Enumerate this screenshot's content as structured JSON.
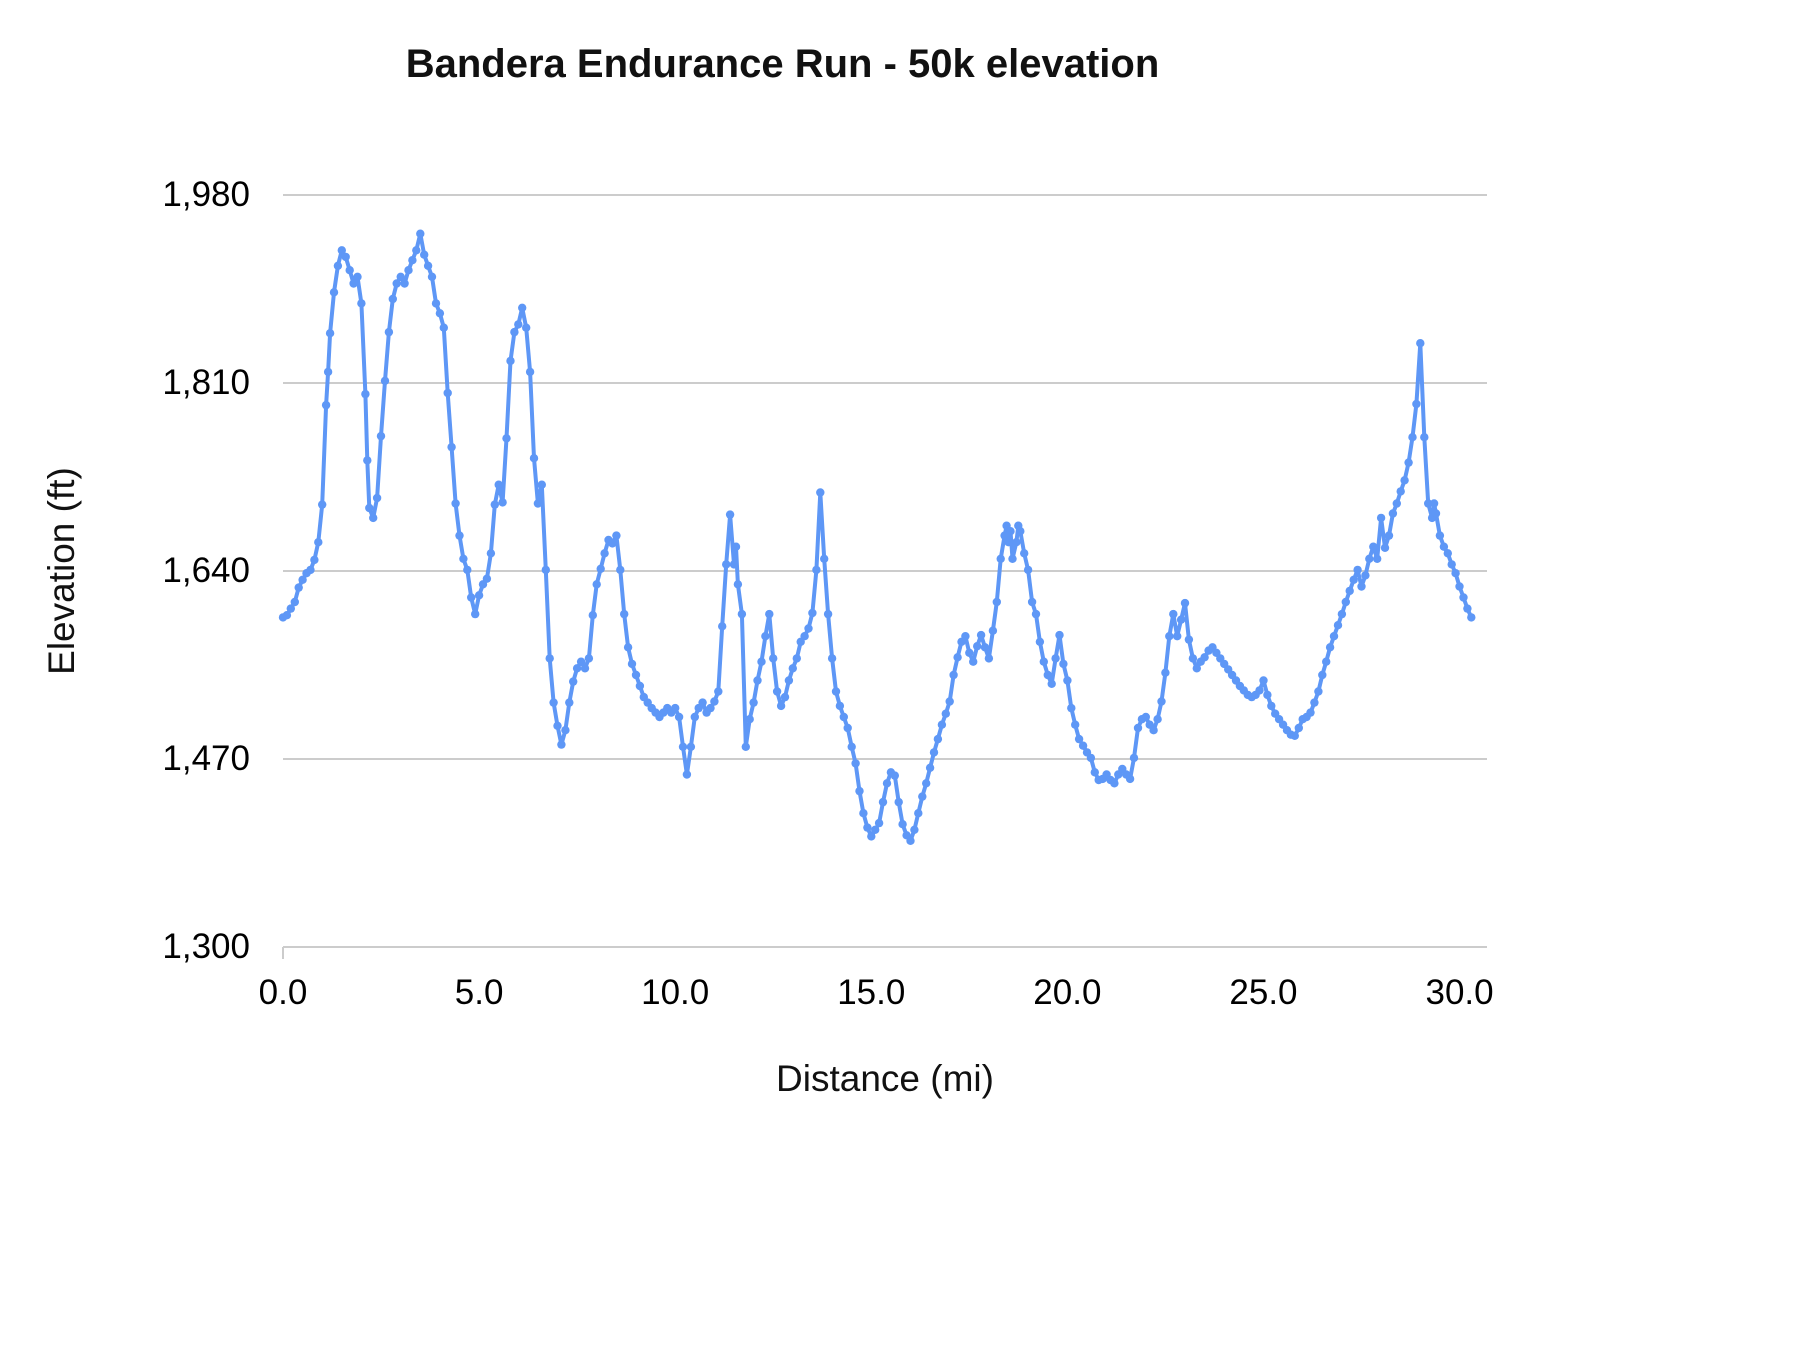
{
  "chart_data": {
    "type": "line",
    "title": "Bandera Endurance Run - 50k elevation",
    "xlabel": "Distance (mi)",
    "ylabel": "Elevation (ft)",
    "xlim": [
      0,
      30.7
    ],
    "ylim": [
      1300,
      1980
    ],
    "grid": "horizontal",
    "legend": "none",
    "line_color": "#5e97f6",
    "grid_color": "#cccccc",
    "marker": "circle",
    "x_ticks": [
      {
        "v": 0,
        "label": "0.0"
      },
      {
        "v": 5,
        "label": "5.0"
      },
      {
        "v": 10,
        "label": "10.0"
      },
      {
        "v": 15,
        "label": "15.0"
      },
      {
        "v": 20,
        "label": "20.0"
      },
      {
        "v": 25,
        "label": "25.0"
      },
      {
        "v": 30,
        "label": "30.0"
      }
    ],
    "y_ticks": [
      {
        "v": 1300,
        "label": "1,300"
      },
      {
        "v": 1470,
        "label": "1,470"
      },
      {
        "v": 1640,
        "label": "1,640"
      },
      {
        "v": 1810,
        "label": "1,810"
      },
      {
        "v": 1980,
        "label": "1,980"
      }
    ],
    "series_name": "Elevation (ft)",
    "points": [
      [
        0.0,
        1598
      ],
      [
        0.1,
        1600
      ],
      [
        0.2,
        1606
      ],
      [
        0.3,
        1612
      ],
      [
        0.4,
        1625
      ],
      [
        0.5,
        1632
      ],
      [
        0.6,
        1638
      ],
      [
        0.7,
        1641
      ],
      [
        0.8,
        1650
      ],
      [
        0.9,
        1666
      ],
      [
        1.0,
        1700
      ],
      [
        1.1,
        1790
      ],
      [
        1.15,
        1820
      ],
      [
        1.2,
        1855
      ],
      [
        1.3,
        1892
      ],
      [
        1.4,
        1916
      ],
      [
        1.5,
        1930
      ],
      [
        1.6,
        1924
      ],
      [
        1.7,
        1912
      ],
      [
        1.8,
        1900
      ],
      [
        1.9,
        1906
      ],
      [
        2.0,
        1882
      ],
      [
        2.1,
        1800
      ],
      [
        2.15,
        1740
      ],
      [
        2.2,
        1697
      ],
      [
        2.3,
        1688
      ],
      [
        2.4,
        1706
      ],
      [
        2.5,
        1762
      ],
      [
        2.6,
        1812
      ],
      [
        2.7,
        1856
      ],
      [
        2.8,
        1886
      ],
      [
        2.9,
        1900
      ],
      [
        3.0,
        1906
      ],
      [
        3.1,
        1900
      ],
      [
        3.2,
        1912
      ],
      [
        3.3,
        1921
      ],
      [
        3.4,
        1930
      ],
      [
        3.5,
        1945
      ],
      [
        3.6,
        1926
      ],
      [
        3.7,
        1916
      ],
      [
        3.8,
        1906
      ],
      [
        3.9,
        1882
      ],
      [
        4.0,
        1873
      ],
      [
        4.1,
        1860
      ],
      [
        4.2,
        1801
      ],
      [
        4.3,
        1752
      ],
      [
        4.4,
        1701
      ],
      [
        4.5,
        1672
      ],
      [
        4.6,
        1651
      ],
      [
        4.7,
        1641
      ],
      [
        4.8,
        1616
      ],
      [
        4.9,
        1601
      ],
      [
        5.0,
        1618
      ],
      [
        5.1,
        1628
      ],
      [
        5.2,
        1633
      ],
      [
        5.3,
        1656
      ],
      [
        5.4,
        1700
      ],
      [
        5.5,
        1718
      ],
      [
        5.6,
        1702
      ],
      [
        5.7,
        1760
      ],
      [
        5.8,
        1830
      ],
      [
        5.9,
        1856
      ],
      [
        6.0,
        1863
      ],
      [
        6.1,
        1878
      ],
      [
        6.2,
        1860
      ],
      [
        6.3,
        1820
      ],
      [
        6.4,
        1742
      ],
      [
        6.5,
        1701
      ],
      [
        6.6,
        1718
      ],
      [
        6.7,
        1641
      ],
      [
        6.8,
        1561
      ],
      [
        6.9,
        1521
      ],
      [
        7.0,
        1500
      ],
      [
        7.1,
        1483
      ],
      [
        7.2,
        1496
      ],
      [
        7.3,
        1521
      ],
      [
        7.4,
        1540
      ],
      [
        7.5,
        1552
      ],
      [
        7.6,
        1558
      ],
      [
        7.7,
        1552
      ],
      [
        7.8,
        1561
      ],
      [
        7.9,
        1600
      ],
      [
        8.0,
        1628
      ],
      [
        8.1,
        1642
      ],
      [
        8.2,
        1656
      ],
      [
        8.3,
        1668
      ],
      [
        8.4,
        1665
      ],
      [
        8.5,
        1672
      ],
      [
        8.6,
        1641
      ],
      [
        8.7,
        1601
      ],
      [
        8.8,
        1571
      ],
      [
        8.9,
        1556
      ],
      [
        9.0,
        1546
      ],
      [
        9.1,
        1536
      ],
      [
        9.2,
        1526
      ],
      [
        9.3,
        1521
      ],
      [
        9.4,
        1516
      ],
      [
        9.5,
        1512
      ],
      [
        9.6,
        1508
      ],
      [
        9.7,
        1512
      ],
      [
        9.8,
        1516
      ],
      [
        9.9,
        1512
      ],
      [
        10.0,
        1516
      ],
      [
        10.1,
        1508
      ],
      [
        10.2,
        1481
      ],
      [
        10.3,
        1456
      ],
      [
        10.4,
        1481
      ],
      [
        10.5,
        1508
      ],
      [
        10.6,
        1516
      ],
      [
        10.7,
        1521
      ],
      [
        10.8,
        1512
      ],
      [
        10.9,
        1516
      ],
      [
        11.0,
        1522
      ],
      [
        11.1,
        1531
      ],
      [
        11.2,
        1590
      ],
      [
        11.3,
        1646
      ],
      [
        11.4,
        1691
      ],
      [
        11.5,
        1646
      ],
      [
        11.55,
        1662
      ],
      [
        11.6,
        1628
      ],
      [
        11.7,
        1601
      ],
      [
        11.8,
        1481
      ],
      [
        11.9,
        1506
      ],
      [
        12.0,
        1521
      ],
      [
        12.1,
        1541
      ],
      [
        12.2,
        1558
      ],
      [
        12.3,
        1581
      ],
      [
        12.4,
        1601
      ],
      [
        12.5,
        1561
      ],
      [
        12.6,
        1531
      ],
      [
        12.7,
        1518
      ],
      [
        12.8,
        1526
      ],
      [
        12.9,
        1541
      ],
      [
        13.0,
        1552
      ],
      [
        13.1,
        1561
      ],
      [
        13.2,
        1576
      ],
      [
        13.3,
        1581
      ],
      [
        13.4,
        1588
      ],
      [
        13.5,
        1602
      ],
      [
        13.6,
        1641
      ],
      [
        13.7,
        1711
      ],
      [
        13.8,
        1651
      ],
      [
        13.9,
        1601
      ],
      [
        14.0,
        1561
      ],
      [
        14.1,
        1531
      ],
      [
        14.2,
        1518
      ],
      [
        14.3,
        1508
      ],
      [
        14.4,
        1498
      ],
      [
        14.5,
        1481
      ],
      [
        14.6,
        1466
      ],
      [
        14.7,
        1441
      ],
      [
        14.8,
        1421
      ],
      [
        14.9,
        1408
      ],
      [
        15.0,
        1400
      ],
      [
        15.1,
        1406
      ],
      [
        15.2,
        1412
      ],
      [
        15.3,
        1431
      ],
      [
        15.4,
        1448
      ],
      [
        15.5,
        1458
      ],
      [
        15.6,
        1455
      ],
      [
        15.7,
        1431
      ],
      [
        15.8,
        1411
      ],
      [
        15.9,
        1401
      ],
      [
        16.0,
        1396
      ],
      [
        16.1,
        1406
      ],
      [
        16.2,
        1421
      ],
      [
        16.3,
        1436
      ],
      [
        16.4,
        1448
      ],
      [
        16.5,
        1462
      ],
      [
        16.6,
        1476
      ],
      [
        16.7,
        1488
      ],
      [
        16.8,
        1501
      ],
      [
        16.9,
        1511
      ],
      [
        17.0,
        1522
      ],
      [
        17.1,
        1546
      ],
      [
        17.2,
        1562
      ],
      [
        17.3,
        1576
      ],
      [
        17.4,
        1581
      ],
      [
        17.5,
        1566
      ],
      [
        17.6,
        1558
      ],
      [
        17.7,
        1572
      ],
      [
        17.8,
        1582
      ],
      [
        17.9,
        1571
      ],
      [
        18.0,
        1561
      ],
      [
        18.1,
        1586
      ],
      [
        18.2,
        1612
      ],
      [
        18.3,
        1651
      ],
      [
        18.4,
        1672
      ],
      [
        18.45,
        1681
      ],
      [
        18.5,
        1666
      ],
      [
        18.55,
        1676
      ],
      [
        18.6,
        1651
      ],
      [
        18.7,
        1666
      ],
      [
        18.75,
        1681
      ],
      [
        18.8,
        1676
      ],
      [
        18.9,
        1656
      ],
      [
        19.0,
        1641
      ],
      [
        19.1,
        1612
      ],
      [
        19.2,
        1601
      ],
      [
        19.3,
        1576
      ],
      [
        19.4,
        1558
      ],
      [
        19.5,
        1546
      ],
      [
        19.6,
        1538
      ],
      [
        19.7,
        1561
      ],
      [
        19.8,
        1582
      ],
      [
        19.9,
        1556
      ],
      [
        20.0,
        1541
      ],
      [
        20.1,
        1516
      ],
      [
        20.2,
        1501
      ],
      [
        20.3,
        1488
      ],
      [
        20.4,
        1482
      ],
      [
        20.5,
        1476
      ],
      [
        20.6,
        1471
      ],
      [
        20.7,
        1458
      ],
      [
        20.8,
        1451
      ],
      [
        20.9,
        1452
      ],
      [
        21.0,
        1456
      ],
      [
        21.1,
        1451
      ],
      [
        21.2,
        1448
      ],
      [
        21.3,
        1456
      ],
      [
        21.4,
        1461
      ],
      [
        21.5,
        1456
      ],
      [
        21.6,
        1452
      ],
      [
        21.7,
        1471
      ],
      [
        21.8,
        1498
      ],
      [
        21.9,
        1506
      ],
      [
        22.0,
        1508
      ],
      [
        22.1,
        1501
      ],
      [
        22.2,
        1496
      ],
      [
        22.3,
        1506
      ],
      [
        22.4,
        1522
      ],
      [
        22.5,
        1548
      ],
      [
        22.6,
        1581
      ],
      [
        22.7,
        1601
      ],
      [
        22.8,
        1581
      ],
      [
        22.9,
        1596
      ],
      [
        23.0,
        1611
      ],
      [
        23.1,
        1578
      ],
      [
        23.2,
        1561
      ],
      [
        23.3,
        1552
      ],
      [
        23.4,
        1558
      ],
      [
        23.5,
        1562
      ],
      [
        23.6,
        1568
      ],
      [
        23.7,
        1571
      ],
      [
        23.8,
        1566
      ],
      [
        23.9,
        1561
      ],
      [
        24.0,
        1556
      ],
      [
        24.1,
        1551
      ],
      [
        24.2,
        1546
      ],
      [
        24.3,
        1541
      ],
      [
        24.4,
        1536
      ],
      [
        24.5,
        1532
      ],
      [
        24.6,
        1528
      ],
      [
        24.7,
        1526
      ],
      [
        24.8,
        1528
      ],
      [
        24.9,
        1532
      ],
      [
        25.0,
        1541
      ],
      [
        25.1,
        1528
      ],
      [
        25.2,
        1518
      ],
      [
        25.3,
        1511
      ],
      [
        25.4,
        1506
      ],
      [
        25.5,
        1501
      ],
      [
        25.6,
        1496
      ],
      [
        25.7,
        1492
      ],
      [
        25.8,
        1491
      ],
      [
        25.9,
        1498
      ],
      [
        26.0,
        1506
      ],
      [
        26.1,
        1508
      ],
      [
        26.2,
        1512
      ],
      [
        26.3,
        1521
      ],
      [
        26.4,
        1531
      ],
      [
        26.5,
        1546
      ],
      [
        26.6,
        1558
      ],
      [
        26.7,
        1571
      ],
      [
        26.8,
        1581
      ],
      [
        26.9,
        1591
      ],
      [
        27.0,
        1601
      ],
      [
        27.1,
        1612
      ],
      [
        27.2,
        1622
      ],
      [
        27.3,
        1632
      ],
      [
        27.4,
        1641
      ],
      [
        27.5,
        1626
      ],
      [
        27.6,
        1636
      ],
      [
        27.7,
        1651
      ],
      [
        27.8,
        1662
      ],
      [
        27.9,
        1651
      ],
      [
        28.0,
        1688
      ],
      [
        28.1,
        1661
      ],
      [
        28.2,
        1672
      ],
      [
        28.3,
        1692
      ],
      [
        28.4,
        1701
      ],
      [
        28.5,
        1712
      ],
      [
        28.6,
        1722
      ],
      [
        28.7,
        1738
      ],
      [
        28.8,
        1761
      ],
      [
        28.9,
        1791
      ],
      [
        29.0,
        1846
      ],
      [
        29.1,
        1761
      ],
      [
        29.2,
        1701
      ],
      [
        29.3,
        1688
      ],
      [
        29.35,
        1701
      ],
      [
        29.4,
        1692
      ],
      [
        29.5,
        1672
      ],
      [
        29.6,
        1662
      ],
      [
        29.7,
        1656
      ],
      [
        29.8,
        1646
      ],
      [
        29.9,
        1638
      ],
      [
        30.0,
        1626
      ],
      [
        30.1,
        1616
      ],
      [
        30.2,
        1606
      ],
      [
        30.3,
        1598
      ]
    ]
  }
}
